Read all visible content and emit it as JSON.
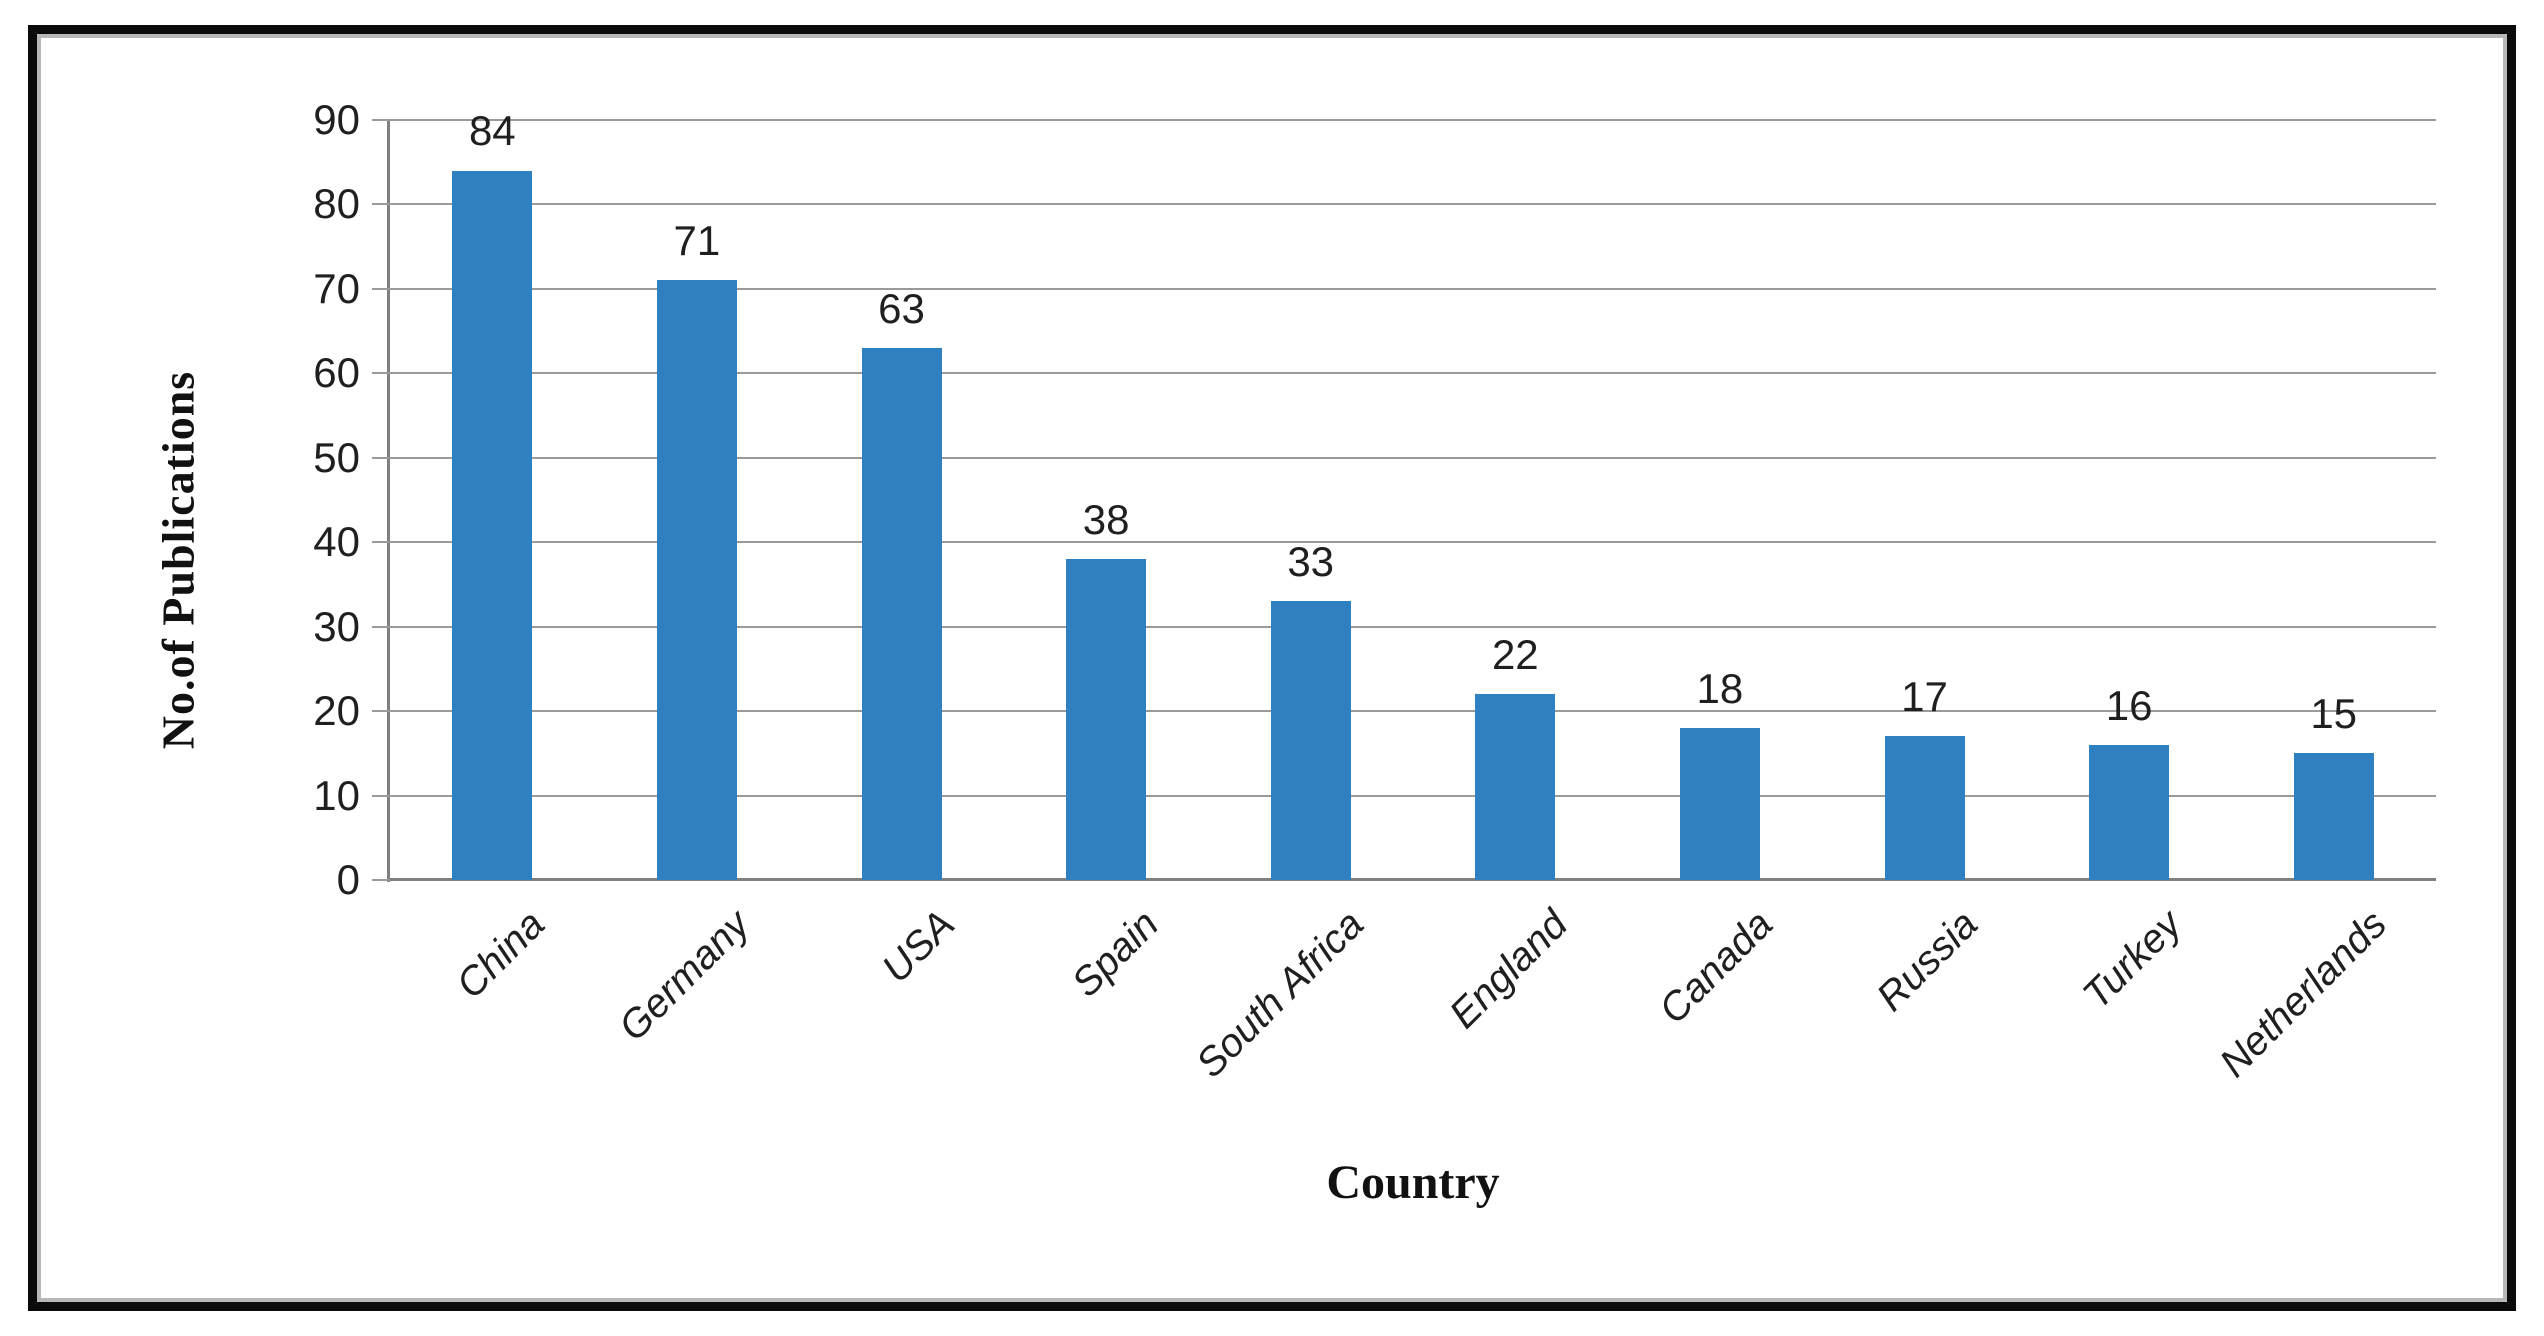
{
  "figure": {
    "background": "#ffffff",
    "frame_color": "#0a0a0a",
    "frame_inner_color": "#b8b8b8"
  },
  "chart_data": {
    "type": "bar",
    "title": "",
    "xlabel": "Country",
    "ylabel": "No.of Publications",
    "categories": [
      "China",
      "Germany",
      "USA",
      "Spain",
      "South Africa",
      "England",
      "Canada",
      "Russia",
      "Turkey",
      "Netherlands"
    ],
    "values": [
      84,
      71,
      63,
      38,
      33,
      22,
      18,
      17,
      16,
      15
    ],
    "show_data_labels": true,
    "ylim": [
      0,
      90
    ],
    "yticks": [
      0,
      10,
      20,
      30,
      40,
      50,
      60,
      70,
      80,
      90
    ],
    "grid": "horizontal",
    "legend": "none",
    "category_label_rotation_deg": 45,
    "colors": {
      "bar": "#2E80C0",
      "gridline": "#9A9A9A",
      "axis": "#7F7F7F",
      "text": "#1F1F1F"
    }
  }
}
